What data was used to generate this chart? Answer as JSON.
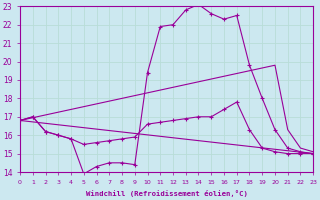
{
  "xlabel": "Windchill (Refroidissement éolien,°C)",
  "xlim": [
    0,
    23
  ],
  "ylim": [
    14,
    23
  ],
  "yticks": [
    14,
    15,
    16,
    17,
    18,
    19,
    20,
    21,
    22,
    23
  ],
  "xticks": [
    0,
    1,
    2,
    3,
    4,
    5,
    6,
    7,
    8,
    9,
    10,
    11,
    12,
    13,
    14,
    15,
    16,
    17,
    18,
    19,
    20,
    21,
    22,
    23
  ],
  "bg_color": "#cce8f0",
  "line_color": "#990099",
  "grid_color": "#aaddcc",
  "line1": {
    "x": [
      0,
      1,
      2,
      3,
      4,
      5,
      6,
      7,
      8,
      9,
      10,
      11,
      12,
      13,
      14,
      15,
      16,
      17,
      18,
      19,
      20,
      21,
      22,
      23
    ],
    "y": [
      16.8,
      17.0,
      16.2,
      16.0,
      15.8,
      13.9,
      14.3,
      14.5,
      14.5,
      14.4,
      19.4,
      21.9,
      22.0,
      22.8,
      23.1,
      22.6,
      22.3,
      22.5,
      19.8,
      18.0,
      16.3,
      15.3,
      15.1,
      15.0
    ]
  },
  "line2": {
    "x": [
      0,
      1,
      2,
      3,
      4,
      5,
      6,
      7,
      8,
      9,
      10,
      11,
      12,
      13,
      14,
      15,
      16,
      17,
      18,
      19,
      20,
      21,
      22,
      23
    ],
    "y": [
      16.8,
      17.0,
      16.2,
      16.0,
      15.8,
      15.5,
      15.6,
      15.7,
      15.8,
      15.9,
      16.6,
      16.7,
      16.8,
      16.9,
      17.0,
      17.0,
      17.4,
      17.8,
      16.3,
      15.3,
      15.1,
      15.0,
      15.0,
      15.0
    ]
  },
  "line3": {
    "x": [
      0,
      20,
      21,
      22,
      23
    ],
    "y": [
      16.8,
      19.8,
      16.3,
      15.3,
      15.1
    ]
  },
  "line4": {
    "x": [
      0,
      23
    ],
    "y": [
      16.8,
      15.0
    ]
  }
}
